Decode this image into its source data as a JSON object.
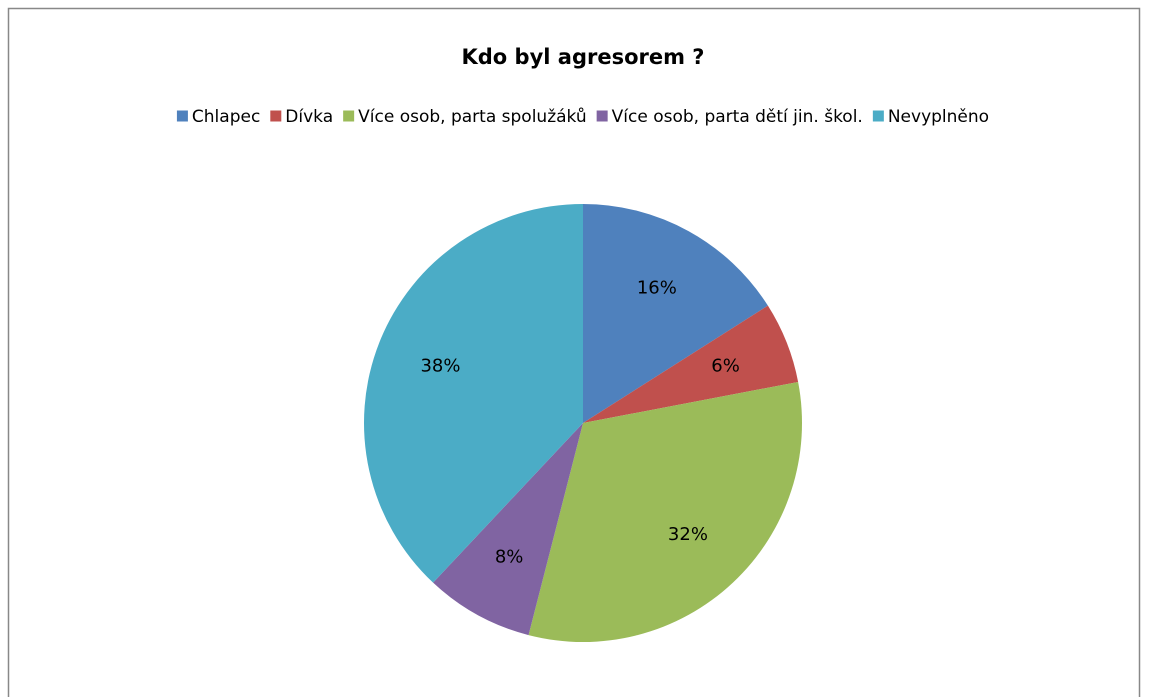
{
  "chart_data": {
    "type": "pie",
    "title": "Kdo byl agresorem ?",
    "categories": [
      "Chlapec",
      "Dívka",
      "Více osob, parta spolužáků",
      "Více osob, parta dětí jin. škol.",
      "Nevyplněno"
    ],
    "values": [
      16,
      6,
      32,
      8,
      38
    ],
    "value_labels": [
      "16%",
      "6%",
      "32%",
      "8%",
      "38%"
    ],
    "colors": [
      "#4f81bd",
      "#c0504d",
      "#9bbb59",
      "#8064a2",
      "#4bacc6"
    ],
    "legend": "top"
  }
}
